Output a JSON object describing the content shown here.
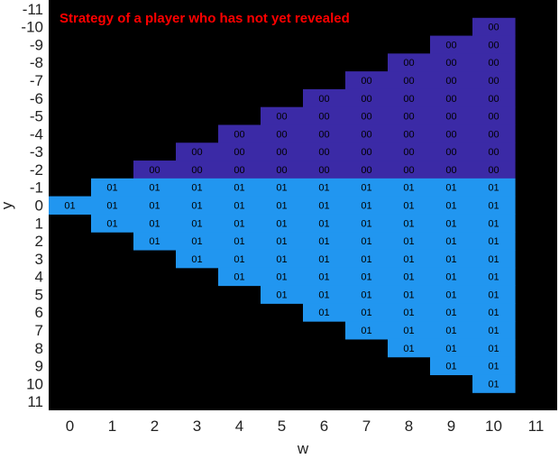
{
  "chart_data": {
    "type": "heatmap",
    "title": "Strategy of a player who has not yet revealed",
    "xlabel": "w",
    "ylabel": "y",
    "xlim": [
      -0.5,
      11.5
    ],
    "ylim": [
      -11.5,
      11.5
    ],
    "y_axis_reversed": true,
    "x_ticks": [
      "0",
      "1",
      "2",
      "3",
      "4",
      "5",
      "6",
      "7",
      "8",
      "9",
      "10",
      "11"
    ],
    "y_ticks": [
      "-11",
      "-10",
      "-9",
      "-8",
      "-7",
      "-6",
      "-5",
      "-4",
      "-3",
      "-2",
      "-1",
      "0",
      "1",
      "2",
      "3",
      "4",
      "5",
      "6",
      "7",
      "8",
      "9",
      "10",
      "11"
    ],
    "cell_rule": "cell present where 0 <= w <= 10 and |y| <= w (w=0 only y=0); value 00 where y <= -2, else 01",
    "categories": [
      {
        "label": "00",
        "color": "#3b2aa6"
      },
      {
        "label": "01",
        "color": "#2196f0"
      }
    ],
    "colors": {
      "background": "#000000",
      "title": "#ff0000",
      "cell_text": "#000000",
      "axis_text": "#222222"
    }
  }
}
